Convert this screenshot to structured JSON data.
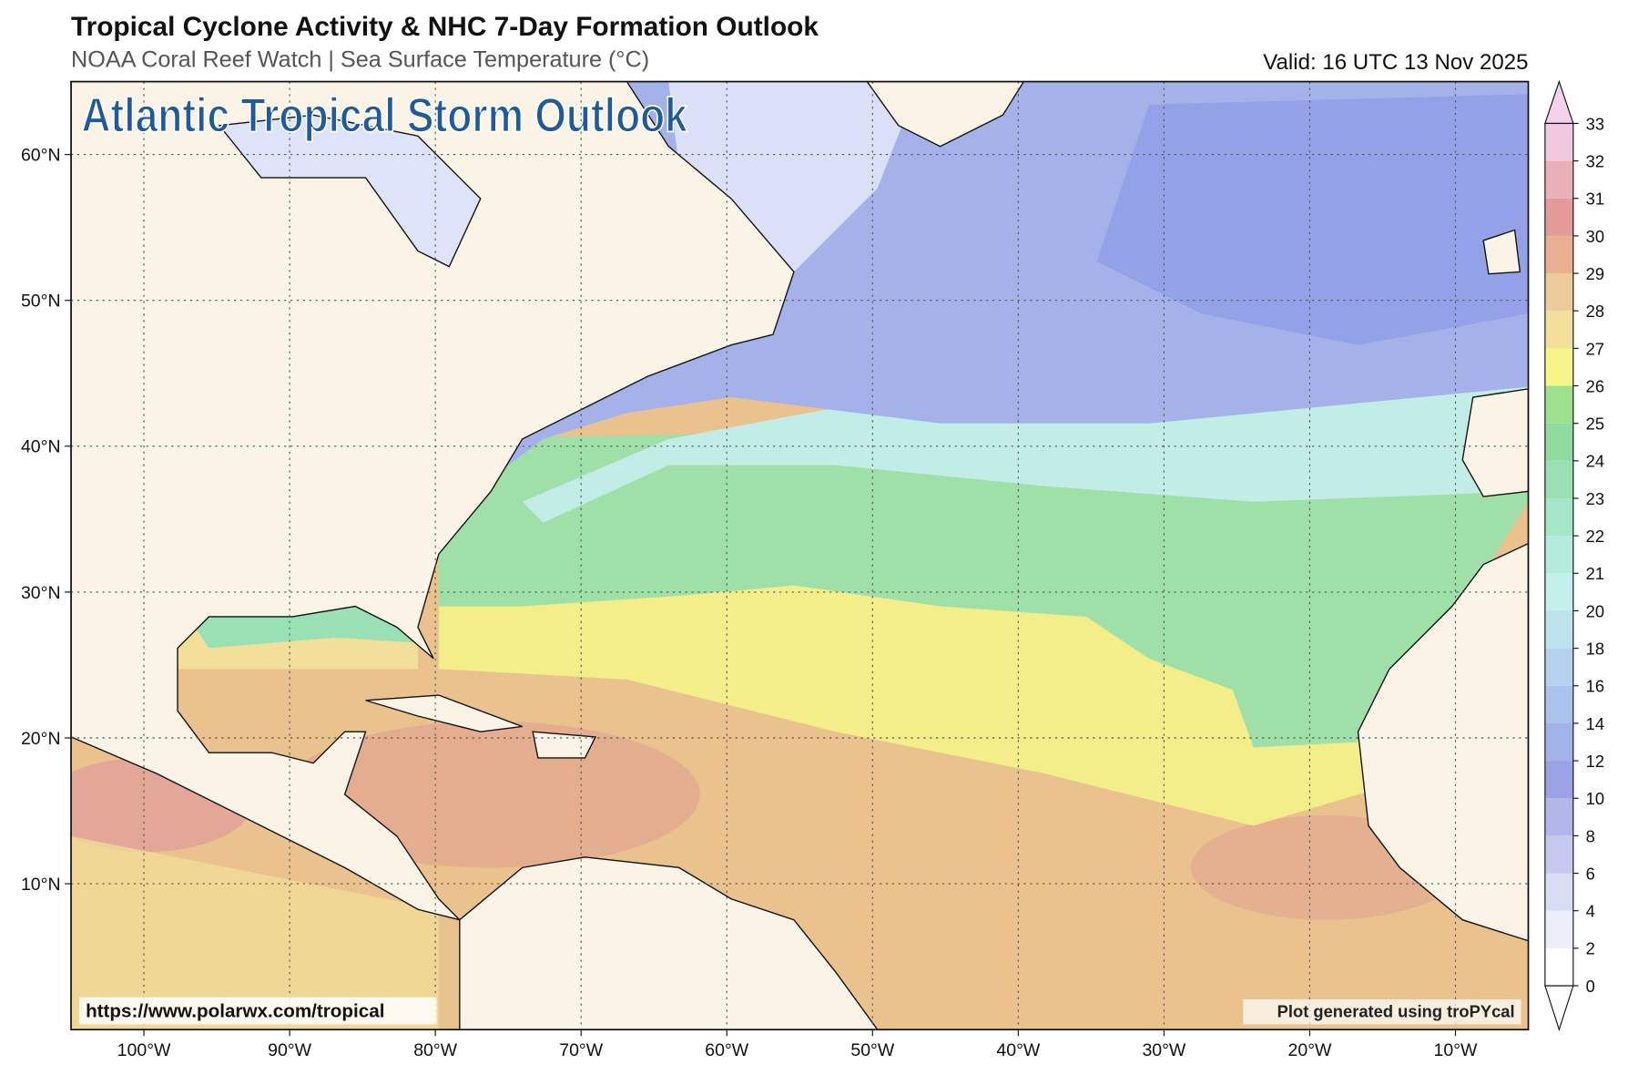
{
  "header": {
    "title": "Tropical Cyclone Activity & NHC 7-Day Formation Outlook",
    "subtitle": "NOAA Coral Reef Watch | Sea Surface Temperature (°C)",
    "valid": "Valid: 16 UTC 13 Nov 2025"
  },
  "map": {
    "overlay_title": "Atlantic Tropical Storm Outlook",
    "lon_range": [
      -105,
      -5
    ],
    "lat_range": [
      0,
      65
    ],
    "grid": true,
    "lon_ticks": [
      {
        "value": -100,
        "label": "100°W"
      },
      {
        "value": -90,
        "label": "90°W"
      },
      {
        "value": -80,
        "label": "80°W"
      },
      {
        "value": -70,
        "label": "70°W"
      },
      {
        "value": -60,
        "label": "60°W"
      },
      {
        "value": -50,
        "label": "50°W"
      },
      {
        "value": -40,
        "label": "40°W"
      },
      {
        "value": -30,
        "label": "30°W"
      },
      {
        "value": -20,
        "label": "20°W"
      },
      {
        "value": -10,
        "label": "10°W"
      }
    ],
    "lat_ticks": [
      {
        "value": 10,
        "label": "10°N"
      },
      {
        "value": 20,
        "label": "20°N"
      },
      {
        "value": 30,
        "label": "30°N"
      },
      {
        "value": 40,
        "label": "40°N"
      },
      {
        "value": 50,
        "label": "50°N"
      },
      {
        "value": 60,
        "label": "60°N"
      }
    ],
    "source_url": "https://www.polarwx.com/tropical",
    "credit": "Plot generated using troPYcal"
  },
  "colorbar": {
    "ticks": [
      0,
      2,
      4,
      6,
      8,
      10,
      12,
      14,
      16,
      18,
      20,
      21,
      22,
      23,
      24,
      25,
      26,
      27,
      28,
      29,
      30,
      31,
      32,
      33
    ],
    "colors": [
      "#ffffff",
      "#eceefa",
      "#d9dcf5",
      "#c5c9f0",
      "#b2b7eb",
      "#9ba3e6",
      "#a4b2ea",
      "#abc2ec",
      "#b4d2ee",
      "#bde2ee",
      "#c4f0ec",
      "#b3ecdc",
      "#a6e6c8",
      "#99e0b4",
      "#90db9f",
      "#9fe08f",
      "#f5f58a",
      "#f2e09a",
      "#edca9a",
      "#e8b090",
      "#e39a98",
      "#e9b0b8",
      "#f0c8e0"
    ],
    "under_color": "#ffffff",
    "over_color": "#f4d2ee"
  }
}
